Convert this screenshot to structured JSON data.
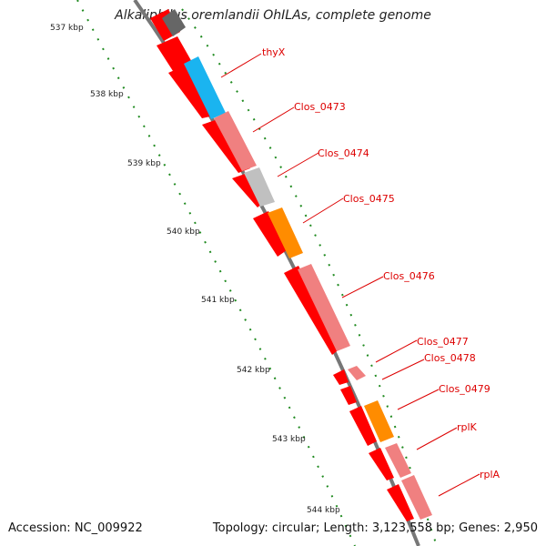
{
  "title": "Alkaliphilus oremlandii OhILAs, complete genome",
  "footer": {
    "accession": "Accession: NC_009922",
    "summary": "Topology: circular; Length: 3,123,558 bp; Genes: 2,950"
  },
  "colors": {
    "cds_red": "#ff0000",
    "gene_pink": "#f08080",
    "gene_blue": "#1ab4f0",
    "gene_orange": "#ff8c00",
    "gene_gray": "#c0c0c0",
    "dark_gray": "#666666",
    "tick_green": "#1f8a1f",
    "label_red": "#dd0000"
  },
  "ticks": [
    "537 kbp",
    "538 kbp",
    "539 kbp",
    "540 kbp",
    "541 kbp",
    "542 kbp",
    "543 kbp",
    "544 kbp"
  ],
  "gene_labels": [
    "thyX",
    "Clos_0473",
    "Clos_0474",
    "Clos_0475",
    "Clos_0476",
    "Clos_0477",
    "Clos_0478",
    "Clos_0479",
    "rplK",
    "rplA"
  ]
}
